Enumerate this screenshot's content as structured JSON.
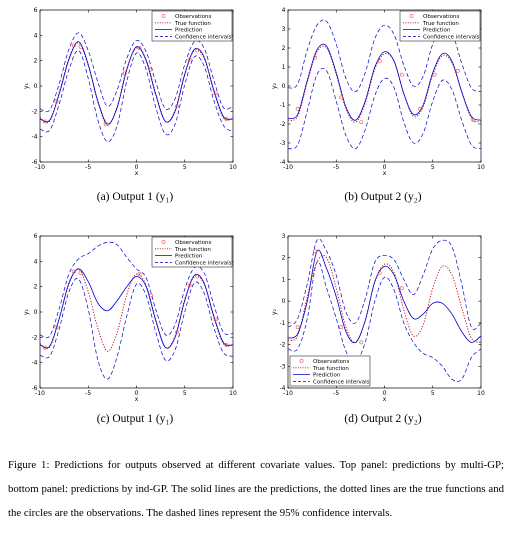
{
  "legend": {
    "observations": "Observations",
    "true_function": "True function",
    "prediction": "Prediction",
    "confidence": "Confidence intervals"
  },
  "colors": {
    "observations": "#e05050",
    "true_function": "#c00000",
    "prediction": "#0000cc",
    "confidence": "#0000cc"
  },
  "subcaptions": {
    "a": "(a)  Output 1 (y₁)",
    "b": "(b)  Output 2 (y₂)",
    "c": "(c)  Output 1 (y₁)",
    "d": "(d)  Output 2 (y₂)"
  },
  "figure_caption": "Figure 1: Predictions for outputs observed at different covariate values. Top panel: predictions by multi-GP; bottom panel: predictions by ind-GP. The solid lines are the predictions, the dotted lines are the true functions and the circles are the observations. The dashed lines represent the 95% confidence intervals.",
  "chart_data": [
    {
      "id": "a",
      "type": "line",
      "xlabel": "x",
      "ylabel": "y₁",
      "xlim": [
        -10,
        10
      ],
      "ylim": [
        -6,
        6
      ],
      "xticks": [
        -10,
        -5,
        0,
        5,
        10
      ],
      "yticks": [
        -6,
        -4,
        -2,
        0,
        2,
        4,
        6
      ],
      "legend_position": "top-right",
      "series": [
        {
          "name": "True function",
          "x": [
            -10,
            -9,
            -8,
            -7,
            -6,
            -5,
            -4,
            -3,
            -2,
            -1,
            0,
            1,
            2,
            3,
            4,
            5,
            6,
            7,
            8,
            9,
            10
          ],
          "y": [
            -2.5,
            -2.8,
            -0.5,
            2.2,
            3.4,
            1.6,
            -1.3,
            -3.1,
            -1.6,
            1.4,
            3.0,
            2.1,
            -0.6,
            -2.8,
            -1.9,
            1.0,
            2.8,
            2.2,
            -0.4,
            -2.5,
            -2.6
          ]
        },
        {
          "name": "Prediction",
          "x": [
            -10,
            -9,
            -8,
            -7,
            -6,
            -5,
            -4,
            -3,
            -2,
            -1,
            0,
            1,
            2,
            3,
            4,
            5,
            6,
            7,
            8,
            9,
            10
          ],
          "y": [
            -2.6,
            -2.7,
            -0.6,
            2.1,
            3.5,
            1.7,
            -1.2,
            -3.0,
            -1.7,
            1.3,
            3.1,
            2.0,
            -0.7,
            -2.8,
            -2.0,
            0.9,
            2.9,
            2.3,
            -0.3,
            -2.4,
            -2.6
          ]
        },
        {
          "name": "Upper confidence",
          "x": [
            -10,
            -9,
            -8,
            -7,
            -6,
            -5,
            -4,
            -3,
            -2,
            -1,
            0,
            1,
            2,
            3,
            4,
            5,
            6,
            7,
            8,
            9,
            10
          ],
          "y": [
            -1.8,
            -1.9,
            0.2,
            2.9,
            4.2,
            2.8,
            0.3,
            -1.6,
            -0.3,
            2.2,
            3.6,
            2.7,
            0.3,
            -1.8,
            -1.0,
            1.7,
            3.5,
            3.0,
            0.5,
            -1.7,
            -1.6
          ]
        },
        {
          "name": "Lower confidence",
          "x": [
            -10,
            -9,
            -8,
            -7,
            -6,
            -5,
            -4,
            -3,
            -2,
            -1,
            0,
            1,
            2,
            3,
            4,
            5,
            6,
            7,
            8,
            9,
            10
          ],
          "y": [
            -3.4,
            -3.5,
            -1.4,
            1.3,
            2.8,
            0.6,
            -2.7,
            -4.4,
            -3.1,
            0.4,
            2.6,
            1.3,
            -1.7,
            -3.8,
            -3.0,
            0.1,
            2.3,
            1.6,
            -1.1,
            -3.1,
            -3.6
          ]
        }
      ],
      "observations": {
        "x": [
          -9.5,
          -8.3,
          -6.5,
          -5.8,
          -3.2,
          -1.2,
          0.3,
          1.5,
          4.2,
          5.5,
          6.3,
          8.2,
          9.3
        ],
        "y": [
          -2.8,
          -1.2,
          3.2,
          3.1,
          -3.0,
          1.0,
          3.0,
          1.3,
          -1.6,
          2.1,
          2.8,
          -0.6,
          -2.6
        ]
      }
    },
    {
      "id": "b",
      "type": "line",
      "xlabel": "x",
      "ylabel": "y₂",
      "xlim": [
        -10,
        10
      ],
      "ylim": [
        -4,
        4
      ],
      "xticks": [
        -10,
        -5,
        0,
        5,
        10
      ],
      "yticks": [
        -4,
        -3,
        -2,
        -1,
        0,
        1,
        2,
        3,
        4
      ],
      "legend_position": "top-right",
      "series": [
        {
          "name": "True function",
          "x": [
            -10,
            -9,
            -8,
            -7,
            -6,
            -5,
            -4,
            -3,
            -2,
            -1,
            0,
            1,
            2,
            3,
            4,
            5,
            6,
            7,
            8,
            9,
            10
          ],
          "y": [
            -1.8,
            -1.6,
            0.2,
            1.8,
            2.0,
            0.6,
            -1.2,
            -1.9,
            -0.9,
            0.9,
            1.7,
            1.3,
            -0.4,
            -1.6,
            -1.1,
            0.6,
            1.6,
            1.2,
            -0.3,
            -1.7,
            -1.9
          ]
        },
        {
          "name": "Prediction",
          "x": [
            -10,
            -9,
            -8,
            -7,
            -6,
            -5,
            -4,
            -3,
            -2,
            -1,
            0,
            1,
            2,
            3,
            4,
            5,
            6,
            7,
            8,
            9,
            10
          ],
          "y": [
            -1.7,
            -1.5,
            0.3,
            1.9,
            2.1,
            0.7,
            -1.1,
            -1.8,
            -0.8,
            1.0,
            1.8,
            1.3,
            -0.4,
            -1.5,
            -1.0,
            0.7,
            1.7,
            1.3,
            -0.3,
            -1.6,
            -1.8
          ]
        },
        {
          "name": "Upper confidence",
          "x": [
            -10,
            -9,
            -8,
            -7,
            -6,
            -5,
            -4,
            -3,
            -2,
            -1,
            0,
            1,
            2,
            3,
            4,
            5,
            6,
            7,
            8,
            9,
            10
          ],
          "y": [
            -0.1,
            0.1,
            1.9,
            3.2,
            3.4,
            2.2,
            0.4,
            -0.3,
            0.7,
            2.5,
            3.2,
            2.7,
            1.1,
            0.0,
            0.5,
            2.2,
            3.1,
            2.8,
            1.2,
            -0.1,
            -0.3
          ]
        },
        {
          "name": "Lower confidence",
          "x": [
            -10,
            -9,
            -8,
            -7,
            -6,
            -5,
            -4,
            -3,
            -2,
            -1,
            0,
            1,
            2,
            3,
            4,
            5,
            6,
            7,
            8,
            9,
            10
          ],
          "y": [
            -3.3,
            -3.1,
            -1.3,
            0.6,
            0.8,
            -0.8,
            -2.6,
            -3.3,
            -2.3,
            -0.5,
            0.4,
            -0.1,
            -1.9,
            -3.0,
            -2.5,
            -0.8,
            0.3,
            -0.2,
            -1.8,
            -3.1,
            -3.3
          ]
        }
      ],
      "observations": {
        "x": [
          -9.0,
          -7.2,
          -4.5,
          -2.4,
          -0.5,
          1.8,
          3.7,
          5.2,
          7.6,
          9.2
        ],
        "y": [
          -1.2,
          1.5,
          -0.6,
          -1.9,
          1.3,
          0.6,
          -1.2,
          0.6,
          0.8,
          -1.8
        ]
      }
    },
    {
      "id": "c",
      "type": "line",
      "xlabel": "x",
      "ylabel": "y₁",
      "xlim": [
        -10,
        10
      ],
      "ylim": [
        -6,
        6
      ],
      "xticks": [
        -10,
        -5,
        0,
        5,
        10
      ],
      "yticks": [
        -6,
        -4,
        -2,
        0,
        2,
        4,
        6
      ],
      "legend_position": "top-right",
      "series": [
        {
          "name": "True function",
          "x": [
            -10,
            -9,
            -8,
            -7,
            -6,
            -5,
            -4,
            -3,
            -2,
            -1,
            0,
            1,
            2,
            3,
            4,
            5,
            6,
            7,
            8,
            9,
            10
          ],
          "y": [
            -2.5,
            -2.8,
            -0.5,
            2.2,
            3.4,
            1.6,
            -1.3,
            -3.1,
            -1.6,
            1.4,
            3.0,
            2.1,
            -0.6,
            -2.8,
            -1.9,
            1.0,
            2.8,
            2.2,
            -0.4,
            -2.5,
            -2.6
          ]
        },
        {
          "name": "Prediction",
          "x": [
            -10,
            -9,
            -8,
            -7,
            -6,
            -5,
            -4,
            -3,
            -2,
            -1,
            0,
            1,
            2,
            3,
            4,
            5,
            6,
            7,
            8,
            9,
            10
          ],
          "y": [
            -2.6,
            -2.7,
            -0.5,
            2.3,
            3.4,
            2.4,
            0.7,
            0.1,
            0.9,
            2.0,
            2.8,
            2.0,
            -0.7,
            -2.8,
            -2.0,
            0.9,
            2.9,
            2.3,
            -0.3,
            -2.4,
            -2.6
          ]
        },
        {
          "name": "Upper confidence",
          "x": [
            -10,
            -9,
            -8,
            -7,
            -6,
            -5,
            -4,
            -3,
            -2,
            -1,
            0,
            1,
            2,
            3,
            4,
            5,
            6,
            7,
            8,
            9,
            10
          ],
          "y": [
            -1.8,
            -1.9,
            0.3,
            3.0,
            4.2,
            4.6,
            5.2,
            5.5,
            5.3,
            4.3,
            3.4,
            2.7,
            0.2,
            -1.8,
            -1.0,
            1.8,
            3.5,
            3.1,
            0.6,
            -1.6,
            -1.7
          ]
        },
        {
          "name": "Lower confidence",
          "x": [
            -10,
            -9,
            -8,
            -7,
            -6,
            -5,
            -4,
            -3,
            -2,
            -1,
            0,
            1,
            2,
            3,
            4,
            5,
            6,
            7,
            8,
            9,
            10
          ],
          "y": [
            -3.4,
            -3.5,
            -1.3,
            1.6,
            2.6,
            0.2,
            -3.8,
            -5.3,
            -3.5,
            -0.3,
            2.2,
            1.3,
            -1.6,
            -3.8,
            -3.0,
            0.0,
            2.3,
            1.5,
            -1.2,
            -3.2,
            -3.5
          ]
        }
      ],
      "observations": {
        "x": [
          -9.5,
          -8.3,
          -6.5,
          -5.8,
          0.3,
          1.5,
          4.2,
          5.5,
          6.3,
          8.2,
          9.3
        ],
        "y": [
          -2.8,
          -1.2,
          3.2,
          3.1,
          3.0,
          1.3,
          -1.6,
          2.1,
          2.8,
          -0.6,
          -2.6
        ]
      }
    },
    {
      "id": "d",
      "type": "line",
      "xlabel": "x",
      "ylabel": "y₂",
      "xlim": [
        -10,
        10
      ],
      "ylim": [
        -4,
        3
      ],
      "xticks": [
        -10,
        -5,
        0,
        5,
        10
      ],
      "yticks": [
        -4,
        -3,
        -2,
        -1,
        0,
        1,
        2,
        3
      ],
      "legend_position": "bottom-left",
      "series": [
        {
          "name": "True function",
          "x": [
            -10,
            -9,
            -8,
            -7,
            -6,
            -5,
            -4,
            -3,
            -2,
            -1,
            0,
            1,
            2,
            3,
            4,
            5,
            6,
            7,
            8,
            9,
            10
          ],
          "y": [
            -1.8,
            -1.6,
            0.2,
            1.8,
            2.0,
            0.6,
            -1.2,
            -1.9,
            -0.9,
            0.9,
            1.7,
            1.3,
            -0.4,
            -1.6,
            -1.1,
            0.6,
            1.6,
            1.2,
            -0.3,
            -1.7,
            -1.9
          ]
        },
        {
          "name": "Prediction",
          "x": [
            -10,
            -9,
            -8,
            -7,
            -6,
            -5,
            -4,
            -3,
            -2,
            -1,
            0,
            1,
            2,
            3,
            4,
            5,
            6,
            7,
            8,
            9,
            10
          ],
          "y": [
            -1.7,
            -1.5,
            0.0,
            2.3,
            1.5,
            0.2,
            -1.4,
            -1.9,
            -0.9,
            0.9,
            1.6,
            1.2,
            0.0,
            -0.8,
            -0.6,
            -0.1,
            -0.1,
            -0.6,
            -1.4,
            -1.9,
            -1.6
          ]
        },
        {
          "name": "Upper confidence",
          "x": [
            -10,
            -9,
            -8,
            -7,
            -6,
            -5,
            -4,
            -3,
            -2,
            -1,
            0,
            1,
            2,
            3,
            4,
            5,
            6,
            7,
            8,
            9,
            10
          ],
          "y": [
            -1.2,
            -0.8,
            0.8,
            2.8,
            2.3,
            1.2,
            -0.5,
            -1.0,
            0.1,
            1.8,
            2.1,
            1.9,
            1.0,
            0.3,
            1.2,
            2.4,
            2.8,
            2.5,
            0.8,
            -1.2,
            -1.0
          ]
        },
        {
          "name": "Lower confidence",
          "x": [
            -10,
            -9,
            -8,
            -7,
            -6,
            -5,
            -4,
            -3,
            -2,
            -1,
            0,
            1,
            2,
            3,
            4,
            5,
            6,
            7,
            8,
            9,
            10
          ],
          "y": [
            -2.2,
            -2.2,
            -0.8,
            1.8,
            0.6,
            -0.8,
            -2.3,
            -2.8,
            -1.9,
            0.0,
            1.1,
            0.5,
            -1.0,
            -1.9,
            -2.4,
            -2.6,
            -3.0,
            -3.6,
            -3.6,
            -2.6,
            -2.2
          ]
        }
      ],
      "observations": {
        "x": [
          -9.0,
          -7.2,
          -4.5,
          -2.4,
          -0.5,
          1.8
        ],
        "y": [
          -1.2,
          2.3,
          -1.2,
          -1.9,
          1.3,
          0.6
        ]
      }
    }
  ]
}
